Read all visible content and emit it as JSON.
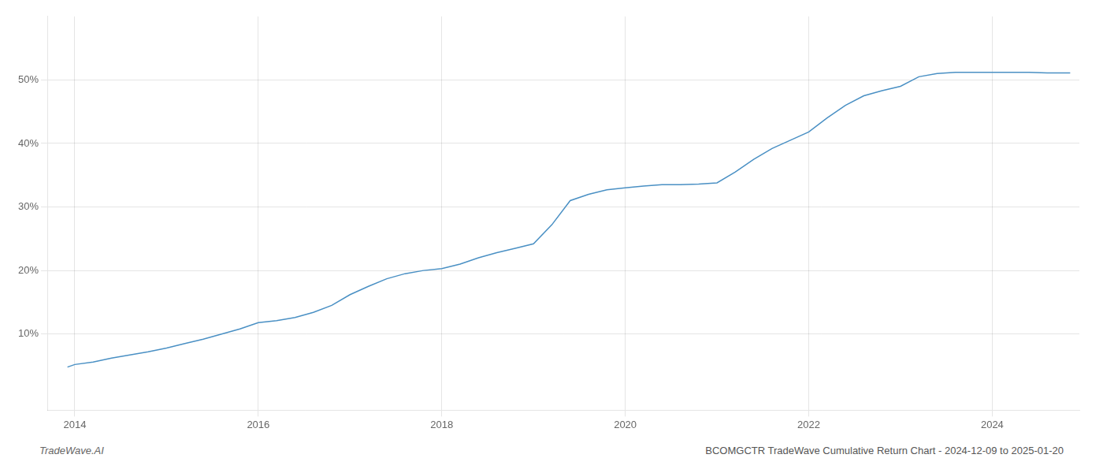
{
  "chart_data": {
    "type": "line",
    "annotations": [
      "TradeWave.AI",
      "BCOMGCTR TradeWave Cumulative Return Chart - 2024-12-09 to 2025-01-20"
    ],
    "color": "#4a90c4",
    "grid": true,
    "xlim": [
      2013.7,
      2024.95
    ],
    "ylim": [
      -0.02,
      0.6
    ],
    "xticks": [
      2014,
      2016,
      2018,
      2020,
      2022,
      2024
    ],
    "yticks": [
      {
        "value": 0.1,
        "label": "10%"
      },
      {
        "value": 0.2,
        "label": "20%"
      },
      {
        "value": 0.3,
        "label": "30%"
      },
      {
        "value": 0.4,
        "label": "40%"
      },
      {
        "value": 0.5,
        "label": "50%"
      }
    ],
    "x": [
      2013.92,
      2014.0,
      2014.2,
      2014.4,
      2014.6,
      2014.8,
      2015.0,
      2015.2,
      2015.4,
      2015.6,
      2015.8,
      2016.0,
      2016.2,
      2016.4,
      2016.6,
      2016.8,
      2017.0,
      2017.2,
      2017.4,
      2017.6,
      2017.8,
      2018.0,
      2018.2,
      2018.4,
      2018.6,
      2018.8,
      2019.0,
      2019.2,
      2019.4,
      2019.6,
      2019.8,
      2020.0,
      2020.2,
      2020.4,
      2020.6,
      2020.8,
      2021.0,
      2021.2,
      2021.4,
      2021.6,
      2021.8,
      2022.0,
      2022.2,
      2022.4,
      2022.6,
      2022.8,
      2023.0,
      2023.2,
      2023.4,
      2023.6,
      2023.8,
      2024.0,
      2024.2,
      2024.4,
      2024.6,
      2024.85
    ],
    "values": [
      0.048,
      0.052,
      0.056,
      0.062,
      0.067,
      0.072,
      0.078,
      0.085,
      0.092,
      0.1,
      0.108,
      0.118,
      0.121,
      0.126,
      0.134,
      0.145,
      0.162,
      0.175,
      0.187,
      0.195,
      0.2,
      0.203,
      0.21,
      0.22,
      0.228,
      0.235,
      0.242,
      0.272,
      0.31,
      0.32,
      0.327,
      0.33,
      0.333,
      0.335,
      0.335,
      0.336,
      0.338,
      0.355,
      0.375,
      0.392,
      0.405,
      0.418,
      0.44,
      0.46,
      0.475,
      0.483,
      0.49,
      0.505,
      0.51,
      0.512,
      0.512,
      0.512,
      0.512,
      0.512,
      0.511,
      0.511
    ]
  }
}
